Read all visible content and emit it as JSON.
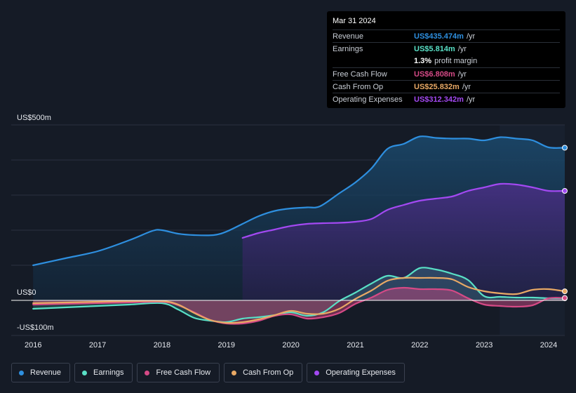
{
  "chart_data": {
    "type": "area",
    "title": "",
    "xlabel": "",
    "ylabel": "",
    "ylim": [
      -100,
      500
    ],
    "y_axis_labels": [
      "US$500m",
      "US$0",
      "-US$100m"
    ],
    "x_ticks": [
      {
        "label": "2016",
        "value": 2016.0
      },
      {
        "label": "2017",
        "value": 2017.0
      },
      {
        "label": "2018",
        "value": 2018.0
      },
      {
        "label": "2019",
        "value": 2019.0
      },
      {
        "label": "2020",
        "value": 2020.0
      },
      {
        "label": "2021",
        "value": 2021.0
      },
      {
        "label": "2022",
        "value": 2022.0
      },
      {
        "label": "2023",
        "value": 2023.0
      },
      {
        "label": "2024",
        "value": 2024.0
      }
    ],
    "x_range": [
      2015.66,
      2024.25
    ],
    "highlight_start": 2023.24,
    "series": [
      {
        "name": "Revenue",
        "color": "#2e8fdf",
        "fill": true,
        "points": [
          [
            2016.0,
            100
          ],
          [
            2016.5,
            120
          ],
          [
            2017.0,
            140
          ],
          [
            2017.5,
            172
          ],
          [
            2017.85,
            198
          ],
          [
            2018.0,
            200
          ],
          [
            2018.25,
            190
          ],
          [
            2018.5,
            186
          ],
          [
            2018.8,
            186
          ],
          [
            2019.0,
            196
          ],
          [
            2019.25,
            218
          ],
          [
            2019.5,
            240
          ],
          [
            2019.75,
            255
          ],
          [
            2020.0,
            262
          ],
          [
            2020.25,
            265
          ],
          [
            2020.45,
            268
          ],
          [
            2020.75,
            305
          ],
          [
            2021.0,
            336
          ],
          [
            2021.25,
            376
          ],
          [
            2021.5,
            432
          ],
          [
            2021.75,
            446
          ],
          [
            2022.0,
            467
          ],
          [
            2022.25,
            463
          ],
          [
            2022.5,
            461
          ],
          [
            2022.75,
            461
          ],
          [
            2023.0,
            456
          ],
          [
            2023.25,
            465
          ],
          [
            2023.5,
            461
          ],
          [
            2023.75,
            456
          ],
          [
            2024.0,
            436
          ],
          [
            2024.25,
            435
          ]
        ]
      },
      {
        "name": "Operating Expenses",
        "color": "#a349f2",
        "fill": true,
        "points": [
          [
            2019.25,
            178
          ],
          [
            2019.5,
            192
          ],
          [
            2019.75,
            202
          ],
          [
            2020.0,
            212
          ],
          [
            2020.25,
            218
          ],
          [
            2020.5,
            220
          ],
          [
            2020.75,
            221
          ],
          [
            2021.0,
            224
          ],
          [
            2021.25,
            232
          ],
          [
            2021.5,
            258
          ],
          [
            2021.75,
            272
          ],
          [
            2022.0,
            284
          ],
          [
            2022.25,
            290
          ],
          [
            2022.5,
            296
          ],
          [
            2022.75,
            312
          ],
          [
            2023.0,
            322
          ],
          [
            2023.25,
            332
          ],
          [
            2023.5,
            330
          ],
          [
            2023.75,
            322
          ],
          [
            2024.0,
            312
          ],
          [
            2024.25,
            312
          ]
        ]
      },
      {
        "name": "Earnings",
        "color": "#59e0c6",
        "fill": true,
        "points": [
          [
            2016.0,
            -24
          ],
          [
            2016.5,
            -20
          ],
          [
            2017.0,
            -16
          ],
          [
            2017.5,
            -12
          ],
          [
            2018.0,
            -8
          ],
          [
            2018.25,
            -26
          ],
          [
            2018.5,
            -50
          ],
          [
            2018.75,
            -58
          ],
          [
            2019.0,
            -62
          ],
          [
            2019.25,
            -52
          ],
          [
            2019.5,
            -48
          ],
          [
            2019.75,
            -42
          ],
          [
            2020.0,
            -34
          ],
          [
            2020.25,
            -44
          ],
          [
            2020.5,
            -34
          ],
          [
            2020.75,
            -2
          ],
          [
            2021.0,
            22
          ],
          [
            2021.25,
            48
          ],
          [
            2021.5,
            70
          ],
          [
            2021.75,
            64
          ],
          [
            2022.0,
            92
          ],
          [
            2022.25,
            88
          ],
          [
            2022.5,
            76
          ],
          [
            2022.75,
            58
          ],
          [
            2023.0,
            12
          ],
          [
            2023.25,
            10
          ],
          [
            2023.5,
            8
          ],
          [
            2023.75,
            8
          ],
          [
            2024.0,
            6
          ],
          [
            2024.25,
            5.8
          ]
        ]
      },
      {
        "name": "Free Cash Flow",
        "color": "#d54a86",
        "fill": true,
        "points": [
          [
            2016.0,
            -12
          ],
          [
            2016.5,
            -10
          ],
          [
            2017.0,
            -8
          ],
          [
            2017.5,
            -6
          ],
          [
            2018.0,
            -4
          ],
          [
            2018.25,
            -14
          ],
          [
            2018.5,
            -34
          ],
          [
            2018.75,
            -56
          ],
          [
            2019.0,
            -66
          ],
          [
            2019.25,
            -66
          ],
          [
            2019.5,
            -58
          ],
          [
            2019.75,
            -44
          ],
          [
            2020.0,
            -40
          ],
          [
            2020.25,
            -52
          ],
          [
            2020.5,
            -48
          ],
          [
            2020.75,
            -36
          ],
          [
            2021.0,
            -10
          ],
          [
            2021.25,
            8
          ],
          [
            2021.5,
            30
          ],
          [
            2021.75,
            36
          ],
          [
            2022.0,
            32
          ],
          [
            2022.25,
            32
          ],
          [
            2022.5,
            28
          ],
          [
            2022.75,
            6
          ],
          [
            2023.0,
            -12
          ],
          [
            2023.25,
            -16
          ],
          [
            2023.5,
            -18
          ],
          [
            2023.75,
            -14
          ],
          [
            2024.0,
            6
          ],
          [
            2024.25,
            6.8
          ]
        ]
      },
      {
        "name": "Cash From Op",
        "color": "#e9a965",
        "fill": false,
        "points": [
          [
            2016.0,
            -8
          ],
          [
            2016.5,
            -6
          ],
          [
            2017.0,
            -4
          ],
          [
            2017.5,
            -2
          ],
          [
            2018.0,
            -2
          ],
          [
            2018.25,
            -12
          ],
          [
            2018.5,
            -36
          ],
          [
            2018.75,
            -56
          ],
          [
            2019.0,
            -64
          ],
          [
            2019.25,
            -62
          ],
          [
            2019.5,
            -54
          ],
          [
            2019.75,
            -42
          ],
          [
            2020.0,
            -30
          ],
          [
            2020.25,
            -38
          ],
          [
            2020.5,
            -38
          ],
          [
            2020.75,
            -24
          ],
          [
            2021.0,
            4
          ],
          [
            2021.25,
            28
          ],
          [
            2021.5,
            56
          ],
          [
            2021.75,
            64
          ],
          [
            2022.0,
            64
          ],
          [
            2022.25,
            64
          ],
          [
            2022.5,
            60
          ],
          [
            2022.75,
            38
          ],
          [
            2023.0,
            26
          ],
          [
            2023.25,
            20
          ],
          [
            2023.5,
            18
          ],
          [
            2023.75,
            30
          ],
          [
            2024.0,
            32
          ],
          [
            2024.25,
            25.8
          ]
        ]
      }
    ]
  },
  "tooltip": {
    "date": "Mar 31 2024",
    "rows": [
      {
        "label": "Revenue",
        "value": "US$435.474m",
        "unit": "/yr",
        "color": "#2e8fdf"
      },
      {
        "label": "Earnings",
        "value": "US$5.814m",
        "unit": "/yr",
        "color": "#59e0c6"
      },
      {
        "label": "",
        "value": "1.3%",
        "unit": "profit margin",
        "color": "#ffffff"
      },
      {
        "label": "Free Cash Flow",
        "value": "US$6.808m",
        "unit": "/yr",
        "color": "#d54a86"
      },
      {
        "label": "Cash From Op",
        "value": "US$25.832m",
        "unit": "/yr",
        "color": "#e9a965"
      },
      {
        "label": "Operating Expenses",
        "value": "US$312.342m",
        "unit": "/yr",
        "color": "#a349f2"
      }
    ]
  },
  "legend": [
    {
      "label": "Revenue",
      "color": "#2e8fdf"
    },
    {
      "label": "Earnings",
      "color": "#59e0c6"
    },
    {
      "label": "Free Cash Flow",
      "color": "#d54a86"
    },
    {
      "label": "Cash From Op",
      "color": "#e9a965"
    },
    {
      "label": "Operating Expenses",
      "color": "#a349f2"
    }
  ]
}
